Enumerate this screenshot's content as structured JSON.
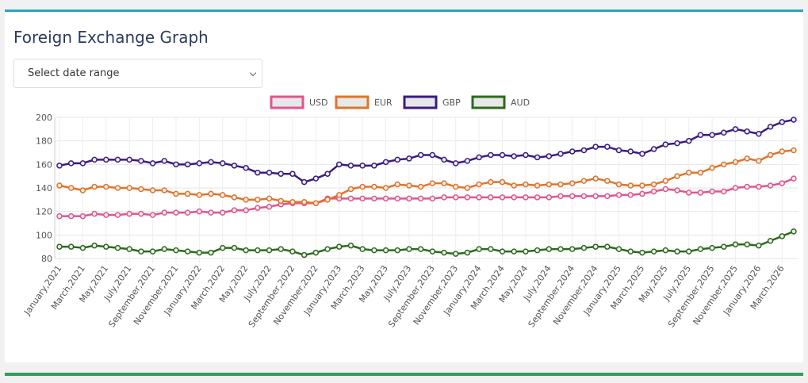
{
  "header": {
    "title": "Foreign Exchange Graph"
  },
  "select": {
    "placeholder": "Select date range"
  },
  "chart_data": {
    "type": "line",
    "legend": "top",
    "grid": true,
    "categories": [
      "January,2021",
      null,
      "March,2021",
      null,
      "May,2021",
      null,
      "July,2021",
      null,
      "September,2021",
      null,
      "November,2021",
      null,
      "January,2022",
      null,
      "March,2022",
      null,
      "May,2022",
      null,
      "July,2022",
      null,
      "September,2022",
      null,
      "November,2022",
      null,
      "January,2023",
      null,
      "March,2023",
      null,
      "May,2023",
      null,
      "July,2023",
      null,
      "September,2023",
      null,
      "November,2023",
      null,
      "January,2024",
      null,
      "March,2024",
      null,
      "May,2024",
      null,
      "July,2024",
      null,
      "September,2024",
      null,
      "November,2024",
      null,
      "January,2025",
      null,
      "March,2025",
      null,
      "May,2025",
      null,
      "July,2025",
      null,
      "September,2025",
      null,
      "November,2025",
      null,
      "January,2026",
      null,
      "March,2026",
      null
    ],
    "ylim": [
      80,
      200
    ],
    "yticks": [
      80,
      100,
      120,
      140,
      160,
      180,
      200
    ],
    "series": [
      {
        "name": "USD",
        "color": "#e0558e",
        "values": [
          116,
          116,
          116,
          118,
          117,
          117,
          118,
          118,
          117,
          119,
          119,
          119,
          120,
          119,
          119,
          121,
          121,
          123,
          124,
          126,
          127,
          127,
          127,
          131,
          131,
          131,
          131,
          131,
          131,
          131,
          131,
          131,
          131,
          132,
          132,
          132,
          132,
          132,
          132,
          132,
          132,
          132,
          132,
          133,
          133,
          133,
          133,
          133,
          134,
          134,
          135,
          137,
          139,
          138,
          136,
          136,
          137,
          137,
          140,
          141,
          141,
          142,
          144,
          148
        ]
      },
      {
        "name": "EUR",
        "color": "#e07428",
        "values": [
          142,
          140,
          138,
          141,
          141,
          140,
          140,
          139,
          138,
          138,
          135,
          135,
          134,
          135,
          134,
          132,
          130,
          130,
          131,
          129,
          128,
          128,
          127,
          130,
          134,
          139,
          141,
          141,
          140,
          143,
          142,
          141,
          144,
          144,
          141,
          140,
          143,
          145,
          145,
          142,
          143,
          142,
          143,
          143,
          144,
          146,
          148,
          146,
          143,
          142,
          142,
          143,
          146,
          150,
          153,
          153,
          157,
          160,
          162,
          165,
          163,
          168,
          171,
          172
        ]
      },
      {
        "name": "GBP",
        "color": "#3b1b82",
        "values": [
          159,
          161,
          161,
          164,
          164,
          164,
          164,
          163,
          161,
          163,
          160,
          160,
          161,
          162,
          161,
          159,
          157,
          153,
          153,
          152,
          152,
          145,
          148,
          152,
          160,
          159,
          159,
          159,
          162,
          164,
          165,
          168,
          168,
          164,
          161,
          163,
          166,
          168,
          168,
          167,
          168,
          166,
          167,
          169,
          171,
          172,
          175,
          175,
          172,
          171,
          169,
          173,
          177,
          178,
          180,
          185,
          185,
          187,
          190,
          188,
          186,
          192,
          196,
          198
        ]
      },
      {
        "name": "AUD",
        "color": "#2c6a1c",
        "values": [
          90,
          90,
          89,
          91,
          90,
          89,
          88,
          86,
          86,
          88,
          87,
          86,
          85,
          85,
          89,
          89,
          87,
          87,
          87,
          88,
          86,
          83,
          85,
          88,
          90,
          91,
          88,
          87,
          87,
          87,
          88,
          88,
          86,
          85,
          84,
          85,
          88,
          88,
          86,
          86,
          86,
          87,
          88,
          88,
          88,
          89,
          90,
          90,
          88,
          86,
          85,
          86,
          87,
          86,
          86,
          88,
          89,
          90,
          92,
          92,
          91,
          95,
          99,
          103
        ]
      }
    ]
  }
}
